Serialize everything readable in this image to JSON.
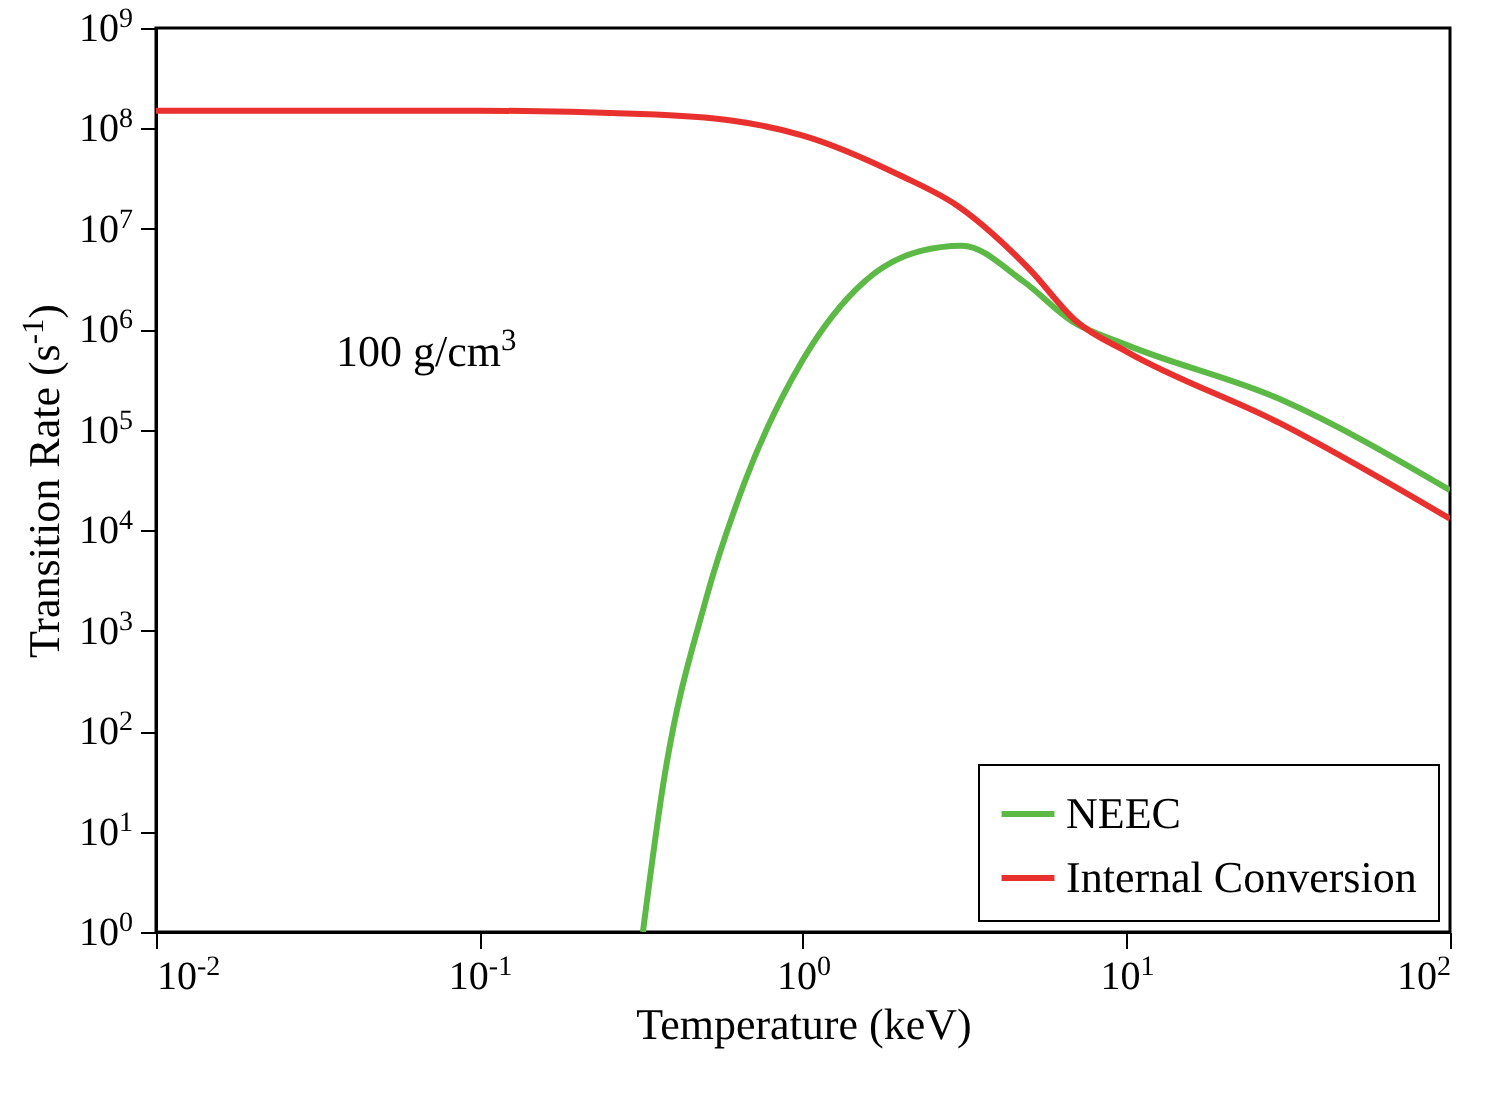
{
  "chart_data": {
    "type": "line",
    "xlabel": "Temperature (keV)",
    "ylabel": "Transition Rate (s$^{-1}$)",
    "log": "xy",
    "legend": "bottom right",
    "grid": false,
    "xlim": [
      0.01,
      100
    ],
    "ylim": [
      1,
      1000000000
    ],
    "xticks": [
      {
        "value": 0.01,
        "label": "10$^{-2}$"
      },
      {
        "value": 0.1,
        "label": "10$^{-1}$"
      },
      {
        "value": 1,
        "label": "10$^{0}$"
      },
      {
        "value": 10,
        "label": "10$^{1}$"
      },
      {
        "value": 100,
        "label": "10$^{2}$"
      }
    ],
    "yticks": [
      {
        "value": 1,
        "label": "10$^{0}$"
      },
      {
        "value": 10,
        "label": "10$^{1}$"
      },
      {
        "value": 100,
        "label": "10$^{2}$"
      },
      {
        "value": 1000,
        "label": "10$^{3}$"
      },
      {
        "value": 10000,
        "label": "10$^{4}$"
      },
      {
        "value": 100000,
        "label": "10$^{5}$"
      },
      {
        "value": 1000000,
        "label": "10$^{6}$"
      },
      {
        "value": 10000000,
        "label": "10$^{7}$"
      },
      {
        "value": 100000000,
        "label": "10$^{8}$"
      },
      {
        "value": 1000000000,
        "label": "10$^{9}$"
      }
    ],
    "annotations": [
      "100 g/cm$^{3}$"
    ],
    "series": [
      {
        "name": "NEEC",
        "color": "#5cb946",
        "x": [
          0.32,
          0.37,
          0.5,
          0.66,
          1.0,
          1.55,
          2.3,
          3.1,
          4.8,
          6.8,
          10,
          30,
          100
        ],
        "values": [
          1,
          30,
          2000,
          30000,
          500000,
          3000000,
          6000000,
          6800000,
          3000000,
          1200000,
          700000,
          200000,
          25000
        ]
      },
      {
        "name": "Internal Conversion",
        "color": "#e8312e",
        "x": [
          0.01,
          0.1,
          0.3,
          0.6,
          1,
          2,
          3,
          5,
          7,
          10,
          30,
          100
        ],
        "values": [
          150000000,
          150000000,
          140000000,
          120000000,
          85000000,
          34000000,
          17000000,
          4000000,
          1200000,
          600000,
          115000,
          13000
        ]
      }
    ]
  }
}
